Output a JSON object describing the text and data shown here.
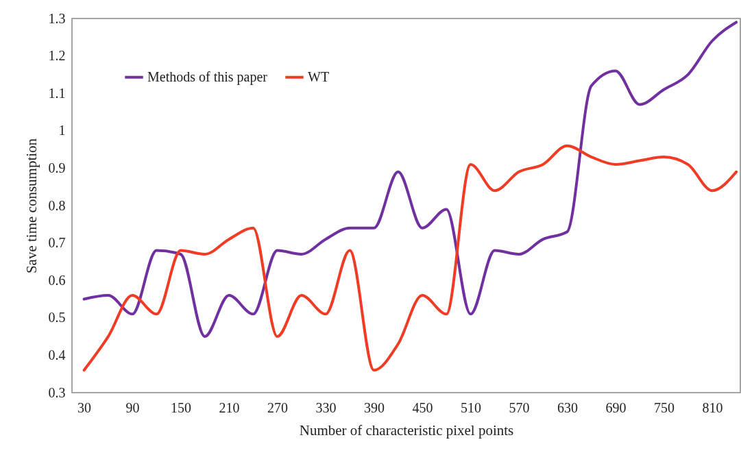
{
  "chart_data": {
    "type": "line",
    "xlabel": "Number of characteristic pixel points",
    "ylabel": "Save time consumption",
    "x": [
      30,
      60,
      90,
      120,
      150,
      180,
      210,
      240,
      270,
      300,
      330,
      360,
      390,
      420,
      450,
      480,
      510,
      540,
      570,
      600,
      630,
      660,
      690,
      720,
      750,
      780,
      810,
      840
    ],
    "series": [
      {
        "name": "Methods of this paper",
        "color": "#7030a0",
        "values": [
          0.55,
          0.56,
          0.51,
          0.68,
          0.67,
          0.45,
          0.56,
          0.51,
          0.68,
          0.67,
          0.71,
          0.74,
          0.74,
          0.89,
          0.74,
          0.79,
          0.51,
          0.68,
          0.67,
          0.71,
          0.73,
          1.12,
          1.16,
          1.07,
          1.11,
          1.15,
          1.24,
          1.29
        ]
      },
      {
        "name": "WT",
        "color": "#f03c24",
        "values": [
          0.36,
          0.45,
          0.56,
          0.51,
          0.68,
          0.67,
          0.71,
          0.74,
          0.45,
          0.56,
          0.51,
          0.68,
          0.36,
          0.43,
          0.56,
          0.51,
          0.91,
          0.84,
          0.89,
          0.91,
          0.96,
          0.93,
          0.91,
          0.92,
          0.93,
          0.91,
          0.84,
          0.89
        ]
      }
    ],
    "xlim": [
      15,
      845
    ],
    "xticks": [
      30,
      90,
      150,
      210,
      270,
      330,
      390,
      450,
      510,
      570,
      630,
      690,
      750,
      810
    ],
    "ylim": [
      0.3,
      1.3
    ],
    "yticks": [
      0.3,
      0.4,
      0.5,
      0.6,
      0.7,
      0.8,
      0.9,
      1,
      1.1,
      1.2,
      1.3
    ],
    "legend": "top left",
    "line_style": "solid"
  }
}
